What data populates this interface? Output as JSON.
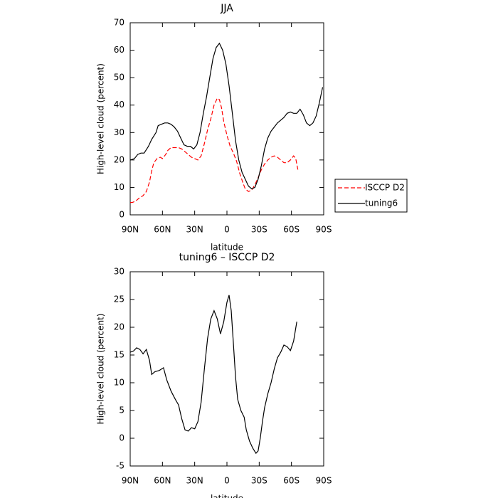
{
  "chart_data": [
    {
      "type": "line",
      "title": "JJA",
      "xlabel": "latitude",
      "ylabel": "High-level cloud (percent)",
      "xlim": [
        90,
        -90
      ],
      "ylim": [
        0,
        70
      ],
      "xticks": [
        {
          "value": 90,
          "label": "90N"
        },
        {
          "value": 60,
          "label": "60N"
        },
        {
          "value": 30,
          "label": "30N"
        },
        0,
        {
          "value": -30,
          "label": "30S"
        },
        {
          "value": -60,
          "label": "60S"
        },
        {
          "value": -90,
          "label": "90S"
        }
      ],
      "yticks": [
        0,
        10,
        20,
        30,
        40,
        50,
        60,
        70
      ],
      "legend": "right",
      "series": [
        {
          "name": "ISCCP D2",
          "color": "#ff0000",
          "dashed": true,
          "x": [
            90,
            88,
            85,
            82,
            78,
            75,
            72,
            70,
            68,
            65,
            62,
            60,
            57,
            55,
            52,
            48,
            45,
            42,
            39,
            36,
            33,
            30,
            27,
            24,
            21,
            18,
            15,
            12,
            9,
            7,
            5,
            3,
            0,
            -3,
            -6,
            -9,
            -12,
            -15,
            -17,
            -20,
            -23,
            -26,
            -29,
            -32,
            -35,
            -38,
            -41,
            -44,
            -47,
            -50,
            -53,
            -56,
            -59,
            -62,
            -64,
            -66
          ],
          "values": [
            4.5,
            4.5,
            5,
            6,
            7,
            8.5,
            12,
            16,
            19,
            20.5,
            21,
            20.5,
            22,
            23.5,
            24.5,
            24.5,
            24.5,
            24,
            23,
            22,
            21,
            20.5,
            20,
            21.5,
            26,
            31,
            35,
            40,
            42.5,
            42,
            39,
            34,
            29,
            25,
            22.5,
            19.5,
            15,
            11.5,
            9.5,
            8.5,
            9,
            11,
            13.5,
            16.5,
            18.5,
            20,
            21,
            21.5,
            21,
            20,
            19,
            19,
            20,
            21.5,
            20.5,
            16.5
          ]
        },
        {
          "name": "tuning6",
          "color": "#000000",
          "dashed": false,
          "x": [
            90,
            86,
            83,
            80,
            77,
            73,
            70,
            66,
            64,
            61,
            58,
            55,
            52,
            49,
            46,
            43,
            40,
            37,
            34,
            31,
            28,
            25,
            22,
            19,
            16,
            13,
            10,
            7,
            4,
            1,
            -2,
            -5,
            -8,
            -11,
            -14,
            -17,
            -20,
            -23,
            -26,
            -29,
            -32,
            -35,
            -38,
            -41,
            -44,
            -47,
            -50,
            -53,
            -56,
            -59,
            -62,
            -65,
            -68,
            -71,
            -74,
            -77,
            -80,
            -83,
            -86,
            -89
          ],
          "values": [
            20,
            20.5,
            22,
            22.5,
            22.5,
            25,
            27.5,
            30,
            32.5,
            33,
            33.5,
            33.5,
            33,
            32,
            30.5,
            28,
            25.5,
            25,
            25,
            24,
            25.5,
            30,
            37,
            43,
            50,
            57,
            61,
            62.5,
            60,
            55,
            47,
            37,
            27,
            20,
            15.5,
            13,
            10.5,
            9.5,
            10,
            13,
            18,
            24,
            28,
            30.5,
            32,
            33.5,
            34.5,
            35.5,
            37,
            37.5,
            37,
            37,
            38.5,
            36.5,
            33.5,
            32.5,
            33.5,
            36,
            41,
            46.5
          ]
        }
      ]
    },
    {
      "type": "line",
      "title": "tuning6 – ISCCP D2",
      "xlabel": "latitude",
      "ylabel": "High-level cloud (percent)",
      "xlim": [
        90,
        -90
      ],
      "ylim": [
        -5,
        30
      ],
      "xticks": [
        {
          "value": 90,
          "label": "90N"
        },
        {
          "value": 60,
          "label": "60N"
        },
        {
          "value": 30,
          "label": "30N"
        },
        0,
        {
          "value": -30,
          "label": "30S"
        },
        {
          "value": -60,
          "label": "60S"
        },
        {
          "value": -90,
          "label": "90S"
        }
      ],
      "yticks": [
        -5,
        0,
        5,
        10,
        15,
        20,
        25,
        30
      ],
      "series": [
        {
          "color": "#000000",
          "dashed": false,
          "x": [
            90,
            87,
            84,
            81,
            78,
            75,
            72,
            70,
            67,
            63,
            59,
            56,
            52,
            48,
            45,
            42,
            39,
            36,
            33,
            30,
            27,
            24,
            21,
            18,
            15,
            12,
            9,
            6,
            3,
            0,
            -2,
            -4,
            -6,
            -8,
            -10,
            -13,
            -16,
            -18,
            -21,
            -24,
            -27,
            -29,
            -31,
            -33,
            -35,
            -38,
            -41,
            -44,
            -47,
            -50,
            -53,
            -56,
            -59,
            -62,
            -65
          ],
          "values": [
            15.5,
            15.7,
            16.3,
            16,
            15.2,
            16,
            14,
            11.5,
            12,
            12.2,
            12.7,
            10.5,
            8.5,
            7,
            6,
            3.5,
            1.5,
            1.3,
            1.9,
            1.7,
            3,
            6.5,
            12.5,
            18,
            21.5,
            23,
            21.5,
            18.8,
            21,
            24.5,
            25.8,
            23,
            17,
            11,
            7,
            5,
            3.8,
            1.5,
            -0.5,
            -1.8,
            -2.7,
            -2.3,
            0,
            3,
            5.5,
            8,
            10,
            12.5,
            14.5,
            15.5,
            16.8,
            16.5,
            15.8,
            17.5,
            21
          ]
        }
      ]
    }
  ]
}
